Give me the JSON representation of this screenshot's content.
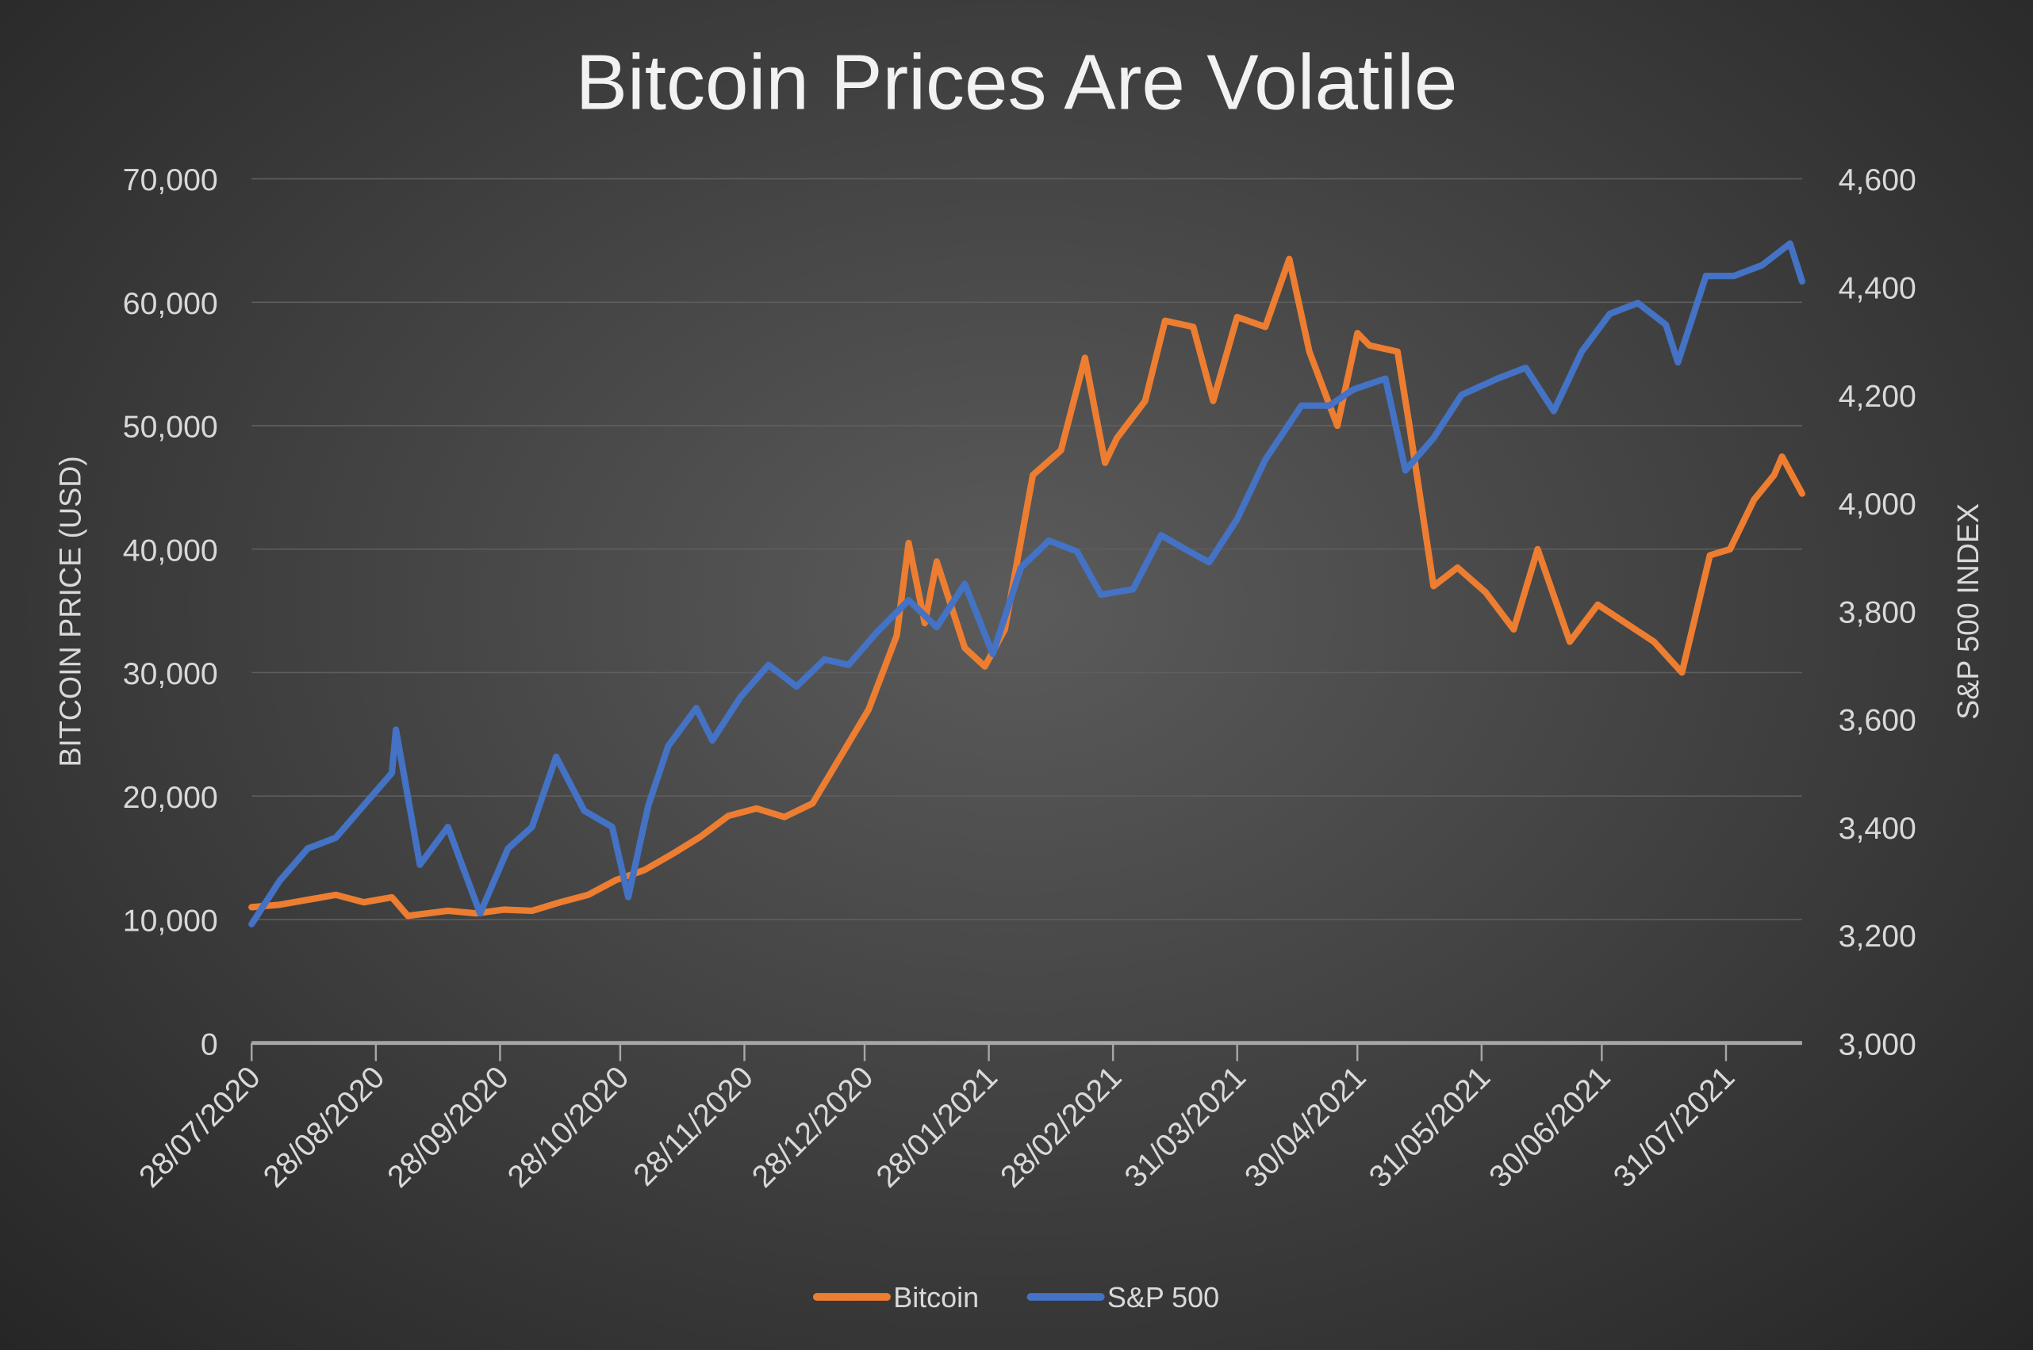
{
  "chart_data": {
    "type": "line",
    "title": "Bitcoin Prices Are Volatile",
    "ylabel": "BITCOIN PRICE (USD)",
    "y2label": "S&P 500 INDEX",
    "ylim": [
      0,
      70000
    ],
    "y2lim": [
      3000,
      4600
    ],
    "yticks": [
      "0",
      "10,000",
      "20,000",
      "30,000",
      "40,000",
      "50,000",
      "60,000",
      "70,000"
    ],
    "y2ticks": [
      "3,000",
      "3,200",
      "3,400",
      "3,600",
      "3,800",
      "4,000",
      "4,200",
      "4,400",
      "4,600"
    ],
    "xlim": [
      "2020-07-28",
      "2021-08-19"
    ],
    "xtick_dates": [
      "2020-07-28",
      "2020-08-28",
      "2020-09-28",
      "2020-10-28",
      "2020-11-28",
      "2020-12-28",
      "2021-01-28",
      "2021-02-28",
      "2021-03-31",
      "2021-04-30",
      "2021-05-31",
      "2021-06-30",
      "2021-07-31"
    ],
    "xticks": [
      "28/07/2020",
      "28/08/2020",
      "28/09/2020",
      "28/10/2020",
      "28/11/2020",
      "28/12/2020",
      "28/01/2021",
      "28/02/2021",
      "31/03/2021",
      "30/04/2021",
      "31/05/2021",
      "30/06/2021",
      "31/07/2021"
    ],
    "grid": true,
    "legend_placement": "bottom",
    "series": [
      {
        "name": "Bitcoin",
        "axis": "left",
        "color": "#ED7D31",
        "points": [
          [
            "2020-07-28",
            11000
          ],
          [
            "2020-08-04",
            11200
          ],
          [
            "2020-08-11",
            11600
          ],
          [
            "2020-08-18",
            12000
          ],
          [
            "2020-08-25",
            11400
          ],
          [
            "2020-09-01",
            11800
          ],
          [
            "2020-09-05",
            10300
          ],
          [
            "2020-09-15",
            10700
          ],
          [
            "2020-09-22",
            10500
          ],
          [
            "2020-09-29",
            10800
          ],
          [
            "2020-10-06",
            10700
          ],
          [
            "2020-10-13",
            11400
          ],
          [
            "2020-10-20",
            12000
          ],
          [
            "2020-10-27",
            13200
          ],
          [
            "2020-11-03",
            14000
          ],
          [
            "2020-11-10",
            15300
          ],
          [
            "2020-11-17",
            16700
          ],
          [
            "2020-11-24",
            18400
          ],
          [
            "2020-12-01",
            19000
          ],
          [
            "2020-12-08",
            18300
          ],
          [
            "2020-12-15",
            19400
          ],
          [
            "2020-12-22",
            23200
          ],
          [
            "2020-12-29",
            27000
          ],
          [
            "2021-01-05",
            33000
          ],
          [
            "2021-01-08",
            40500
          ],
          [
            "2021-01-12",
            34000
          ],
          [
            "2021-01-15",
            39000
          ],
          [
            "2021-01-22",
            32000
          ],
          [
            "2021-01-27",
            30500
          ],
          [
            "2021-02-01",
            33500
          ],
          [
            "2021-02-08",
            46000
          ],
          [
            "2021-02-15",
            48000
          ],
          [
            "2021-02-21",
            55500
          ],
          [
            "2021-02-26",
            47000
          ],
          [
            "2021-03-01",
            49000
          ],
          [
            "2021-03-08",
            52000
          ],
          [
            "2021-03-13",
            58500
          ],
          [
            "2021-03-20",
            58000
          ],
          [
            "2021-03-25",
            52000
          ],
          [
            "2021-03-31",
            58800
          ],
          [
            "2021-04-07",
            58000
          ],
          [
            "2021-04-13",
            63500
          ],
          [
            "2021-04-18",
            56000
          ],
          [
            "2021-04-25",
            50000
          ],
          [
            "2021-04-30",
            57500
          ],
          [
            "2021-05-03",
            56500
          ],
          [
            "2021-05-10",
            56000
          ],
          [
            "2021-05-13",
            50000
          ],
          [
            "2021-05-19",
            37000
          ],
          [
            "2021-05-25",
            38500
          ],
          [
            "2021-06-01",
            36500
          ],
          [
            "2021-06-08",
            33500
          ],
          [
            "2021-06-14",
            40000
          ],
          [
            "2021-06-22",
            32500
          ],
          [
            "2021-06-29",
            35500
          ],
          [
            "2021-07-06",
            34000
          ],
          [
            "2021-07-13",
            32500
          ],
          [
            "2021-07-20",
            30000
          ],
          [
            "2021-07-27",
            39500
          ],
          [
            "2021-08-01",
            40000
          ],
          [
            "2021-08-07",
            44000
          ],
          [
            "2021-08-12",
            46000
          ],
          [
            "2021-08-14",
            47500
          ],
          [
            "2021-08-19",
            44500
          ]
        ]
      },
      {
        "name": "S&P 500",
        "axis": "right",
        "color": "#4472C4",
        "points": [
          [
            "2020-07-28",
            3220
          ],
          [
            "2020-08-04",
            3300
          ],
          [
            "2020-08-11",
            3360
          ],
          [
            "2020-08-18",
            3380
          ],
          [
            "2020-08-25",
            3440
          ],
          [
            "2020-09-01",
            3500
          ],
          [
            "2020-09-02",
            3580
          ],
          [
            "2020-09-08",
            3330
          ],
          [
            "2020-09-15",
            3400
          ],
          [
            "2020-09-23",
            3240
          ],
          [
            "2020-09-30",
            3360
          ],
          [
            "2020-10-06",
            3400
          ],
          [
            "2020-10-12",
            3530
          ],
          [
            "2020-10-19",
            3430
          ],
          [
            "2020-10-26",
            3400
          ],
          [
            "2020-10-30",
            3270
          ],
          [
            "2020-11-04",
            3440
          ],
          [
            "2020-11-09",
            3550
          ],
          [
            "2020-11-16",
            3620
          ],
          [
            "2020-11-20",
            3560
          ],
          [
            "2020-11-27",
            3640
          ],
          [
            "2020-12-04",
            3700
          ],
          [
            "2020-12-11",
            3660
          ],
          [
            "2020-12-18",
            3710
          ],
          [
            "2020-12-24",
            3700
          ],
          [
            "2020-12-31",
            3760
          ],
          [
            "2021-01-08",
            3820
          ],
          [
            "2021-01-15",
            3770
          ],
          [
            "2021-01-22",
            3850
          ],
          [
            "2021-01-29",
            3720
          ],
          [
            "2021-02-05",
            3880
          ],
          [
            "2021-02-12",
            3930
          ],
          [
            "2021-02-19",
            3910
          ],
          [
            "2021-02-25",
            3830
          ],
          [
            "2021-03-05",
            3840
          ],
          [
            "2021-03-12",
            3940
          ],
          [
            "2021-03-19",
            3910
          ],
          [
            "2021-03-24",
            3890
          ],
          [
            "2021-03-31",
            3970
          ],
          [
            "2021-04-07",
            4080
          ],
          [
            "2021-04-16",
            4180
          ],
          [
            "2021-04-23",
            4180
          ],
          [
            "2021-04-29",
            4210
          ],
          [
            "2021-05-07",
            4230
          ],
          [
            "2021-05-12",
            4060
          ],
          [
            "2021-05-19",
            4120
          ],
          [
            "2021-05-26",
            4200
          ],
          [
            "2021-06-04",
            4230
          ],
          [
            "2021-06-11",
            4250
          ],
          [
            "2021-06-18",
            4170
          ],
          [
            "2021-06-25",
            4280
          ],
          [
            "2021-07-02",
            4350
          ],
          [
            "2021-07-09",
            4370
          ],
          [
            "2021-07-16",
            4330
          ],
          [
            "2021-07-19",
            4260
          ],
          [
            "2021-07-26",
            4420
          ],
          [
            "2021-08-02",
            4420
          ],
          [
            "2021-08-09",
            4440
          ],
          [
            "2021-08-16",
            4480
          ],
          [
            "2021-08-19",
            4410
          ]
        ]
      }
    ]
  }
}
